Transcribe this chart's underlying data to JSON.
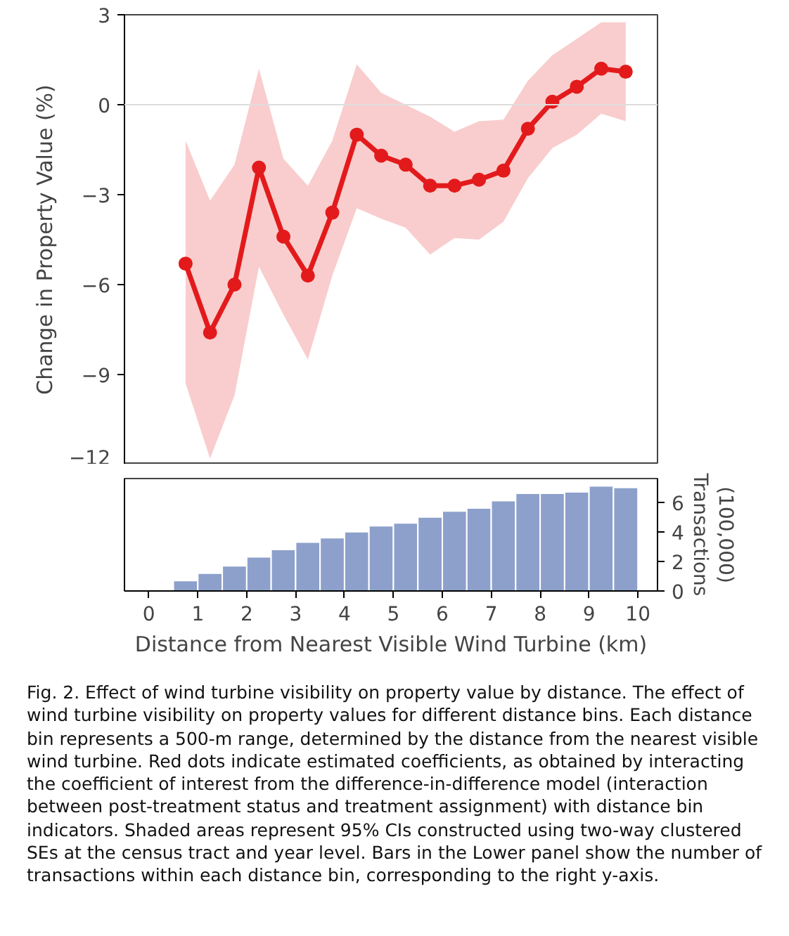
{
  "chart_data": [
    {
      "type": "line",
      "ylabel": "Change in Property Value (%)",
      "xlim": [
        -0.5,
        10.4
      ],
      "ylim": [
        -12,
        3
      ],
      "yticks": [
        {
          "value": 3,
          "label": "3"
        },
        {
          "value": 0,
          "label": "0"
        },
        {
          "value": -3,
          "label": "−3"
        },
        {
          "value": -6,
          "label": "−6"
        },
        {
          "value": -9,
          "label": "−9"
        },
        {
          "value": -12,
          "label": "−12"
        }
      ],
      "tick_labels": "y",
      "grid": false,
      "marker": "circle",
      "line_style": "solid",
      "x": [
        0.75,
        1.25,
        1.75,
        2.25,
        2.75,
        3.25,
        3.75,
        4.25,
        4.75,
        5.25,
        5.75,
        6.25,
        6.75,
        7.25,
        7.75,
        8.25,
        8.75,
        9.25,
        9.75
      ],
      "series": [
        {
          "color": "#e31a1c",
          "values": [
            -5.3,
            -7.6,
            -6.0,
            -2.1,
            -4.4,
            -5.7,
            -3.6,
            -1.0,
            -1.7,
            -2.0,
            -2.7,
            -2.7,
            -2.5,
            -2.2,
            -0.8,
            0.1,
            0.6,
            1.2,
            1.1
          ],
          "lower": [
            -9.3,
            -11.8,
            -9.7,
            -5.4,
            -7.0,
            -8.5,
            -5.7,
            -3.45,
            -3.8,
            -4.1,
            -5.0,
            -4.45,
            -4.5,
            -3.9,
            -2.45,
            -1.45,
            -1.0,
            -0.3,
            -0.55
          ],
          "upper": [
            -1.2,
            -3.2,
            -2.0,
            1.2,
            -1.8,
            -2.7,
            -1.2,
            1.35,
            0.4,
            0.0,
            -0.4,
            -0.9,
            -0.55,
            -0.5,
            0.8,
            1.65,
            2.2,
            2.75,
            2.75
          ]
        }
      ],
      "ref_lines": [
        {
          "axis": "y",
          "value": 0,
          "color": "#dddddd"
        }
      ]
    },
    {
      "type": "bar",
      "xlabel": "Distance from Nearest Visible Wind Turbine (km)",
      "y2label": "Transactions\n(100,000)",
      "xlim": [
        -0.5,
        10.4
      ],
      "xticks": [
        0,
        1,
        2,
        3,
        4,
        5,
        6,
        7,
        8,
        9,
        10
      ],
      "y2lim": [
        0,
        7.6
      ],
      "y2ticks": [
        0,
        2,
        4,
        6
      ],
      "grid": false,
      "x": [
        0.75,
        1.25,
        1.75,
        2.25,
        2.75,
        3.25,
        3.75,
        4.25,
        4.75,
        5.25,
        5.75,
        6.25,
        6.75,
        7.25,
        7.75,
        8.25,
        8.75,
        9.25,
        9.75
      ],
      "series": [
        {
          "color": "#8da0cb",
          "axis": "y2",
          "values": [
            0.7,
            1.2,
            1.7,
            2.3,
            2.8,
            3.3,
            3.6,
            4.0,
            4.4,
            4.6,
            5.0,
            5.4,
            5.6,
            6.1,
            6.6,
            6.6,
            6.7,
            7.1,
            7.0
          ]
        }
      ],
      "annotations": [
        "Fig. 2.   Effect of wind turbine visibility on property value by distance. The effect of wind turbine visibility on property values for different distance bins. Each distance bin represents a 500-m range, determined by the distance from the nearest visible wind turbine. Red dots indicate estimated coefficients, as obtained by interacting the coefficient of interest from the difference-in-difference model (interaction between post-treatment status and treatment assignment) with distance bin indicators. Shaded areas represent 95% CIs constructed using two-way clustered SEs at the census tract and year level. Bars in the Lower panel show the number of transactions within each distance bin, corresponding to the right y-axis."
      ]
    }
  ]
}
